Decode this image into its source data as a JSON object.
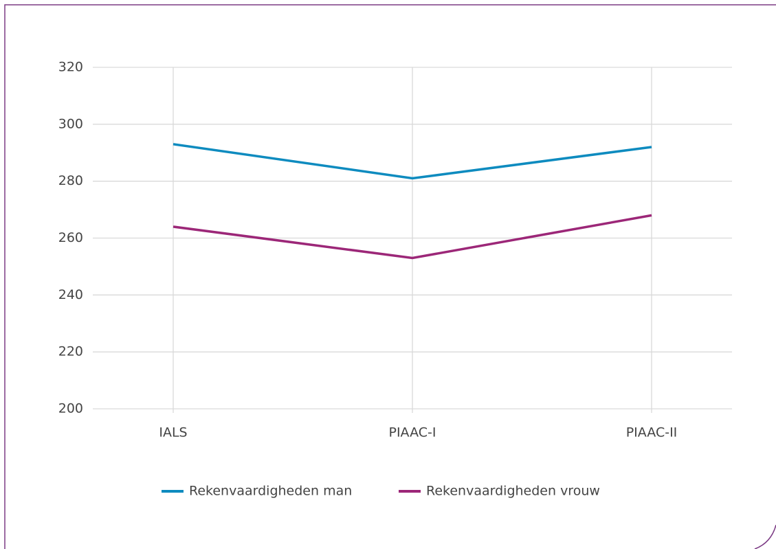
{
  "chart_data": {
    "type": "line",
    "categories": [
      "IALS",
      "PIAAC-I",
      "PIAAC-II"
    ],
    "series": [
      {
        "name": "Rekenvaardigheden man",
        "color": "#0e8bbf",
        "values": [
          293,
          281,
          292
        ]
      },
      {
        "name": "Rekenvaardigheden vrouw",
        "color": "#9c2778",
        "values": [
          264,
          253,
          268
        ]
      }
    ],
    "ylim": [
      200,
      320
    ],
    "yticks": [
      200,
      220,
      240,
      260,
      280,
      300,
      320
    ],
    "grid": true,
    "legend": "bottom"
  }
}
